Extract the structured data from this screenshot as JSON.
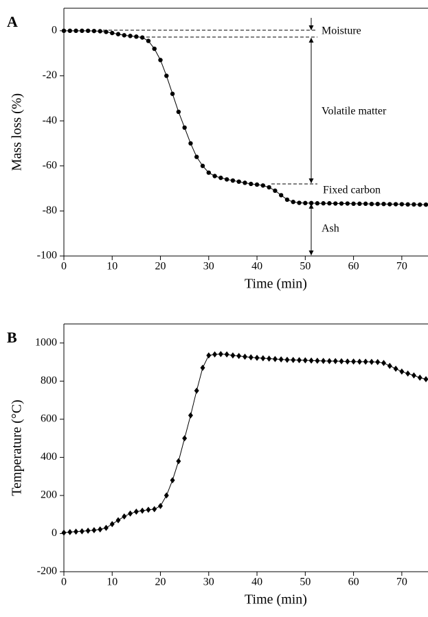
{
  "chart_data": [
    {
      "type": "line",
      "panel_label": "A",
      "x_label": "Time (min)",
      "y_label": "Mass loss (%)",
      "marker": "circle",
      "color": "#000000",
      "annotations": [
        "Moisture",
        "Volatile matter",
        "Fixed carbon",
        "Ash"
      ],
      "xlim": [
        0,
        75
      ],
      "xticks": [
        0,
        10,
        20,
        30,
        40,
        50,
        60,
        70
      ],
      "ylim": [
        -100,
        10
      ],
      "yticks": [
        -100,
        -80,
        -60,
        -40,
        -20,
        0
      ],
      "x": [
        0,
        1.25,
        2.5,
        3.75,
        5,
        6.25,
        7.5,
        8.75,
        10,
        11.25,
        12.5,
        13.75,
        15,
        16.25,
        17.5,
        18.75,
        20,
        21.25,
        22.5,
        23.75,
        25,
        26.25,
        27.5,
        28.75,
        30,
        31.25,
        32.5,
        33.75,
        35,
        36.25,
        37.5,
        38.75,
        40,
        41.25,
        42.5,
        43.75,
        45,
        46.25,
        47.5,
        48.75,
        50,
        51.25,
        52.5,
        53.75,
        55,
        56.25,
        57.5,
        58.75,
        60,
        61.25,
        62.5,
        63.75,
        65,
        66.25,
        67.5,
        68.75,
        70,
        71.25,
        72.5,
        73.75,
        75
      ],
      "values": [
        0,
        0,
        0,
        0,
        0,
        -0.1,
        -0.2,
        -0.5,
        -1,
        -1.5,
        -2,
        -2.3,
        -2.6,
        -3,
        -4.5,
        -8,
        -13,
        -20,
        -28,
        -36,
        -43,
        -50,
        -56,
        -60,
        -63,
        -64.5,
        -65.3,
        -66,
        -66.5,
        -67,
        -67.5,
        -68,
        -68.3,
        -68.7,
        -69.5,
        -71,
        -73,
        -75,
        -76,
        -76.4,
        -76.5,
        -76.5,
        -76.6,
        -76.6,
        -76.6,
        -76.7,
        -76.7,
        -76.7,
        -76.8,
        -76.8,
        -76.8,
        -76.9,
        -76.9,
        -76.9,
        -77,
        -77,
        -77,
        -77.1,
        -77.1,
        -77.2,
        -77.2
      ]
    },
    {
      "type": "line",
      "panel_label": "B",
      "x_label": "Time (min)",
      "y_label": "Temperature (°C)",
      "marker": "diamond",
      "color": "#000000",
      "xlim": [
        0,
        75
      ],
      "xticks": [
        0,
        10,
        20,
        30,
        40,
        50,
        60,
        70
      ],
      "ylim": [
        -200,
        1100
      ],
      "yticks": [
        -200,
        0,
        200,
        400,
        600,
        800,
        1000
      ],
      "x": [
        0,
        1.25,
        2.5,
        3.75,
        5,
        6.25,
        7.5,
        8.75,
        10,
        11.25,
        12.5,
        13.75,
        15,
        16.25,
        17.5,
        18.75,
        20,
        21.25,
        22.5,
        23.75,
        25,
        26.25,
        27.5,
        28.75,
        30,
        31.25,
        32.5,
        33.75,
        35,
        36.25,
        37.5,
        38.75,
        40,
        41.25,
        42.5,
        43.75,
        45,
        46.25,
        47.5,
        48.75,
        50,
        51.25,
        52.5,
        53.75,
        55,
        56.25,
        57.5,
        58.75,
        60,
        61.25,
        62.5,
        63.75,
        65,
        66.25,
        67.5,
        68.75,
        70,
        71.25,
        72.5,
        73.75,
        75
      ],
      "values": [
        5,
        8,
        10,
        12,
        15,
        18,
        22,
        30,
        50,
        70,
        90,
        105,
        115,
        120,
        125,
        128,
        145,
        200,
        280,
        380,
        500,
        620,
        750,
        870,
        935,
        940,
        942,
        940,
        935,
        932,
        928,
        925,
        922,
        920,
        918,
        916,
        914,
        912,
        911,
        910,
        909,
        908,
        907,
        906,
        905,
        905,
        904,
        903,
        903,
        902,
        902,
        901,
        900,
        895,
        880,
        865,
        850,
        840,
        830,
        818,
        810
      ]
    }
  ]
}
